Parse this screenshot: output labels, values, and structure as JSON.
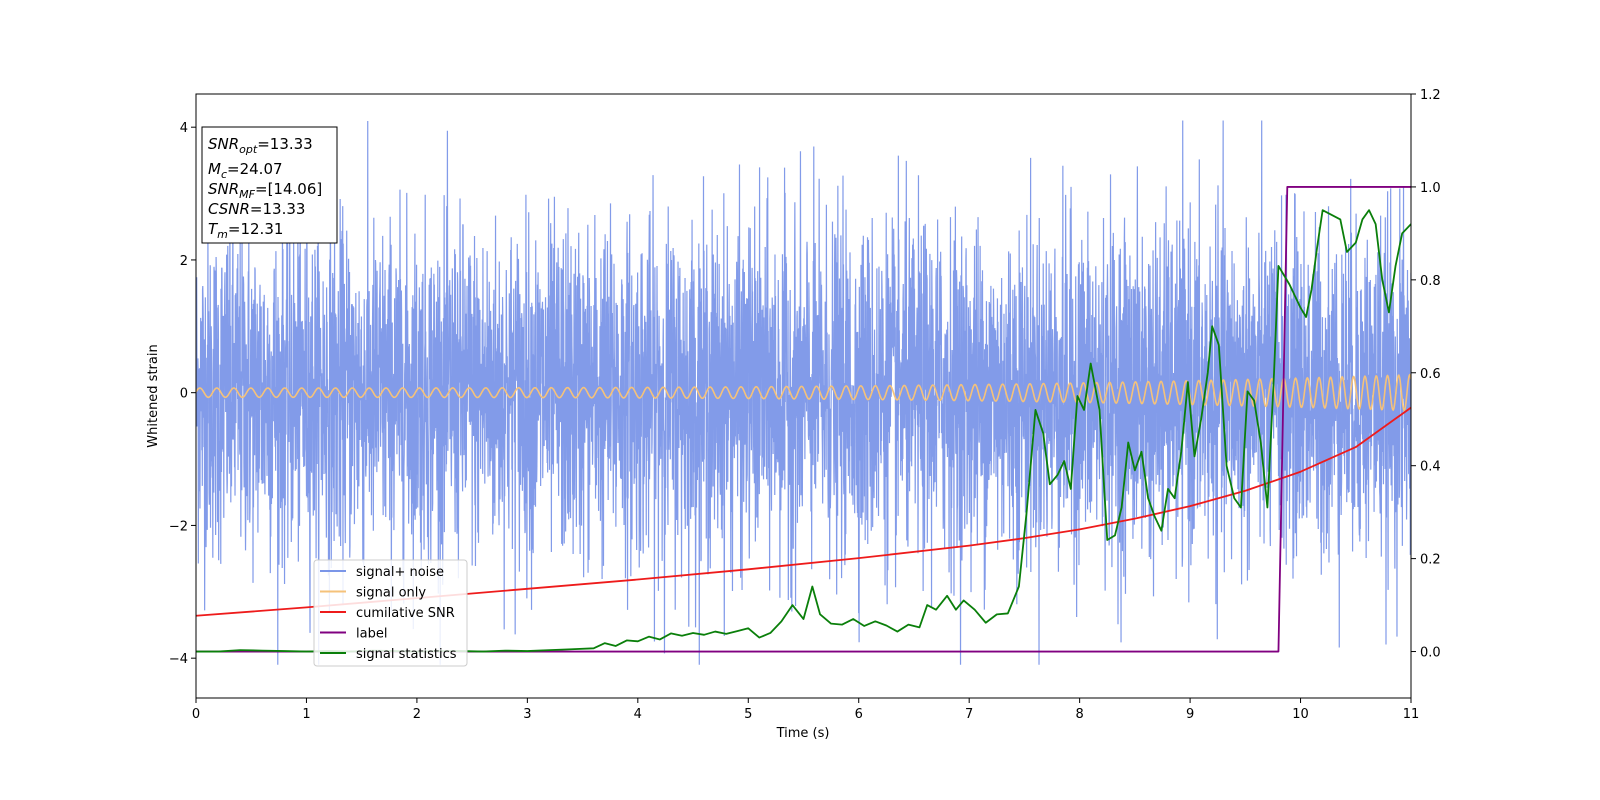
{
  "chart_data": {
    "type": "line",
    "xlabel": "Time (s)",
    "ylabel": "Whitened strain",
    "xlim": [
      0,
      11
    ],
    "ylim": [
      -4.6,
      4.5
    ],
    "y2lim": [
      -0.1,
      1.2
    ],
    "xticks": [
      "0",
      "1",
      "2",
      "3",
      "4",
      "5",
      "6",
      "7",
      "8",
      "9",
      "10",
      "11"
    ],
    "yticks": [
      "−4",
      "−2",
      "0",
      "2",
      "4"
    ],
    "y2ticks": [
      "0.0",
      "0.2",
      "0.4",
      "0.6",
      "0.8",
      "1.0",
      "1.2"
    ],
    "grid": false,
    "legend_position": "lower-left",
    "annotation": {
      "lines": [
        {
          "sym": "SNR",
          "sub": "opt",
          "val": "=13.33"
        },
        {
          "sym": "M",
          "sub": "c",
          "val": "=24.07"
        },
        {
          "sym": "SNR",
          "sub": "MF",
          "val": "=[14.06]"
        },
        {
          "sym": "CSNR",
          "sub": "",
          "val": "=13.33"
        },
        {
          "sym": "T",
          "sub": "m",
          "val": "=12.31"
        }
      ]
    },
    "series": [
      {
        "name": "signal+ noise",
        "axis": "left",
        "color": "#7b96e8",
        "kind": "noise",
        "std": 1.25,
        "max_abs": 4.1
      },
      {
        "name": "signal only",
        "axis": "left",
        "color": "#f5c27a",
        "kind": "chirp",
        "amp_start": 0.07,
        "amp_end": 0.27,
        "freq_start": 6.5,
        "freq_end": 10.0
      },
      {
        "name": "cumilative SNR",
        "axis": "right",
        "color": "#ee1b1b",
        "x": [
          0,
          1,
          2,
          3,
          4,
          5,
          6,
          7,
          7.5,
          8,
          8.5,
          9,
          9.5,
          10,
          10.5,
          11
        ],
        "y": [
          0.077,
          0.095,
          0.115,
          0.135,
          0.155,
          0.177,
          0.201,
          0.228,
          0.244,
          0.263,
          0.286,
          0.313,
          0.346,
          0.387,
          0.44,
          0.525
        ]
      },
      {
        "name": "label",
        "axis": "right",
        "color": "#800080",
        "x": [
          0,
          9.8,
          9.88,
          11
        ],
        "y": [
          0.0,
          0.0,
          1.0,
          1.0
        ]
      },
      {
        "name": "signal statistics",
        "axis": "right",
        "color": "#0a7f0a",
        "x": [
          0,
          0.2,
          0.4,
          0.6,
          0.8,
          1.0,
          1.2,
          1.4,
          1.6,
          1.8,
          2.0,
          2.2,
          2.4,
          2.6,
          2.8,
          3.0,
          3.2,
          3.4,
          3.6,
          3.7,
          3.8,
          3.9,
          4.0,
          4.1,
          4.2,
          4.3,
          4.4,
          4.5,
          4.6,
          4.7,
          4.8,
          4.9,
          5.0,
          5.1,
          5.2,
          5.3,
          5.4,
          5.5,
          5.58,
          5.65,
          5.75,
          5.85,
          5.95,
          6.05,
          6.15,
          6.25,
          6.35,
          6.45,
          6.55,
          6.62,
          6.7,
          6.8,
          6.88,
          6.95,
          7.05,
          7.15,
          7.25,
          7.35,
          7.45,
          7.52,
          7.6,
          7.67,
          7.73,
          7.8,
          7.86,
          7.92,
          7.98,
          8.04,
          8.1,
          8.18,
          8.25,
          8.32,
          8.38,
          8.44,
          8.5,
          8.56,
          8.62,
          8.68,
          8.74,
          8.8,
          8.86,
          8.92,
          8.98,
          9.04,
          9.1,
          9.16,
          9.2,
          9.26,
          9.33,
          9.4,
          9.46,
          9.52,
          9.58,
          9.64,
          9.7,
          9.76,
          9.8,
          9.9,
          10.0,
          10.05,
          10.1,
          10.15,
          10.2,
          10.28,
          10.36,
          10.42,
          10.5,
          10.56,
          10.62,
          10.68,
          10.74,
          10.8,
          10.86,
          10.92,
          11.0
        ],
        "y": [
          0.0,
          0.0,
          0.003,
          0.002,
          0.001,
          0.0,
          0.001,
          0.0,
          0.002,
          0.001,
          0.0,
          0.001,
          0.001,
          0.0,
          0.002,
          0.001,
          0.003,
          0.005,
          0.007,
          0.018,
          0.012,
          0.024,
          0.022,
          0.032,
          0.026,
          0.039,
          0.034,
          0.04,
          0.036,
          0.043,
          0.038,
          0.044,
          0.05,
          0.03,
          0.04,
          0.065,
          0.1,
          0.07,
          0.14,
          0.08,
          0.06,
          0.058,
          0.07,
          0.055,
          0.065,
          0.056,
          0.043,
          0.058,
          0.052,
          0.1,
          0.09,
          0.12,
          0.09,
          0.11,
          0.09,
          0.062,
          0.08,
          0.082,
          0.14,
          0.3,
          0.52,
          0.47,
          0.36,
          0.38,
          0.41,
          0.35,
          0.55,
          0.52,
          0.62,
          0.52,
          0.24,
          0.25,
          0.31,
          0.45,
          0.39,
          0.43,
          0.33,
          0.29,
          0.26,
          0.35,
          0.33,
          0.43,
          0.58,
          0.42,
          0.5,
          0.6,
          0.7,
          0.66,
          0.4,
          0.33,
          0.31,
          0.56,
          0.54,
          0.45,
          0.31,
          0.6,
          0.83,
          0.79,
          0.74,
          0.72,
          0.78,
          0.87,
          0.95,
          0.94,
          0.93,
          0.86,
          0.88,
          0.93,
          0.95,
          0.92,
          0.8,
          0.73,
          0.83,
          0.9,
          0.92
        ]
      }
    ]
  }
}
